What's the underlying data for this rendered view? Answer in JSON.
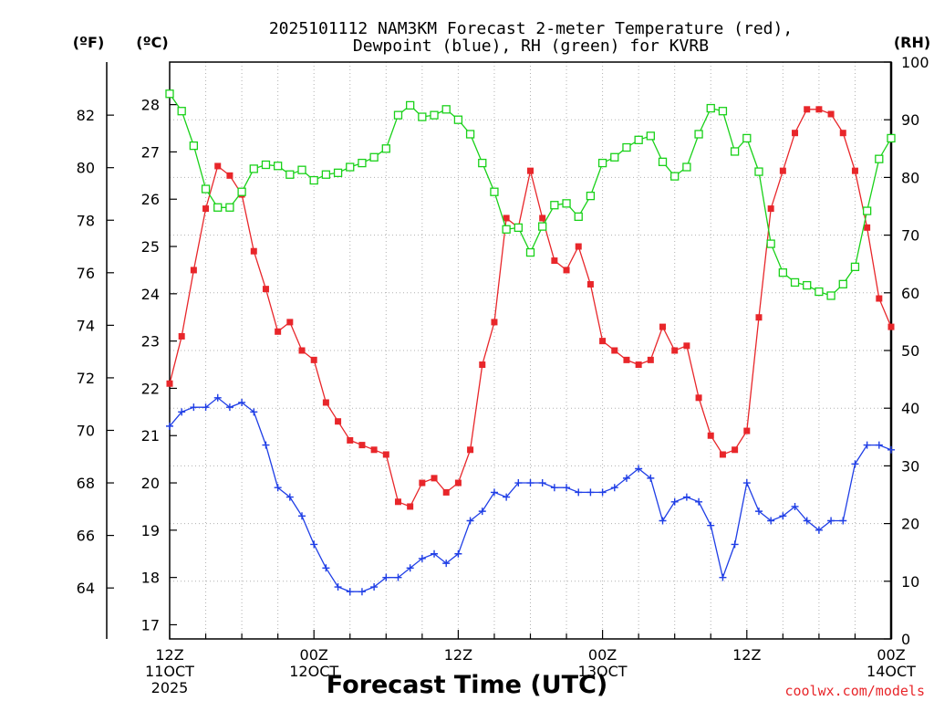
{
  "title_line1": "2025101112 NAM3KM Forecast 2-meter Temperature (red),",
  "title_line2": "Dewpoint (blue), RH (green) for KVRB",
  "left_outer_unit": "(ºF)",
  "left_inner_unit": "(ºC)",
  "right_unit": "(RH)",
  "xlabel": "Forecast Time (UTC)",
  "credit": "coolwx.com/models",
  "colors": {
    "temperature": "#e8262a",
    "dewpoint": "#1f3ee6",
    "rh": "#19d119",
    "grid": "#b0b0b0"
  },
  "chart_data": {
    "type": "line",
    "x": [
      0,
      1,
      2,
      3,
      4,
      5,
      6,
      7,
      8,
      9,
      10,
      11,
      12,
      13,
      14,
      15,
      16,
      17,
      18,
      19,
      20,
      21,
      22,
      23,
      24,
      25,
      26,
      27,
      28,
      29,
      30,
      31,
      32,
      33,
      34,
      35,
      36,
      37,
      38,
      39,
      40,
      41,
      42,
      43,
      44,
      45,
      46,
      47,
      48,
      49,
      50,
      51,
      52,
      53,
      54,
      55,
      56,
      57,
      58,
      59,
      60
    ],
    "xlim": [
      0,
      60
    ],
    "x_ticks": [
      {
        "x": 0,
        "line1": "12Z",
        "line2": "11OCT",
        "line3": "2025"
      },
      {
        "x": 12,
        "line1": "00Z",
        "line2": "12OCT",
        "line3": ""
      },
      {
        "x": 24,
        "line1": "12Z",
        "line2": "",
        "line3": ""
      },
      {
        "x": 36,
        "line1": "00Z",
        "line2": "13OCT",
        "line3": ""
      },
      {
        "x": 48,
        "line1": "12Z",
        "line2": "",
        "line3": ""
      },
      {
        "x": 60,
        "line1": "00Z",
        "line2": "14OCT",
        "line3": ""
      }
    ],
    "celsius_axis": {
      "ylim": [
        16.7,
        28.9
      ],
      "ticks": [
        17,
        18,
        19,
        20,
        21,
        22,
        23,
        24,
        25,
        26,
        27,
        28
      ]
    },
    "fahrenheit_ticks": [
      64,
      66,
      68,
      70,
      72,
      74,
      76,
      78,
      80,
      82
    ],
    "rh_axis": {
      "ylim": [
        0,
        100
      ],
      "ticks": [
        0,
        10,
        20,
        30,
        40,
        50,
        60,
        70,
        80,
        90,
        100
      ]
    },
    "series": [
      {
        "name": "Temperature",
        "unit": "°C",
        "marker": "filled-square",
        "values": [
          22.1,
          23.1,
          24.5,
          25.8,
          26.7,
          26.5,
          26.1,
          24.9,
          24.1,
          23.2,
          23.4,
          22.8,
          22.6,
          21.7,
          21.3,
          20.9,
          20.8,
          20.7,
          20.6,
          19.6,
          19.5,
          20.0,
          20.1,
          19.8,
          20.0,
          20.7,
          22.5,
          23.4,
          25.6,
          25.4,
          26.6,
          25.6,
          24.7,
          24.5,
          25.0,
          24.2,
          23.0,
          22.8,
          22.6,
          22.5,
          22.6,
          23.3,
          22.8,
          22.9,
          21.8,
          21.0,
          20.6,
          20.7,
          21.1,
          23.5,
          25.8,
          26.6,
          27.4,
          27.9,
          27.9,
          27.8,
          27.4,
          26.6,
          25.4,
          23.9,
          23.3
        ]
      },
      {
        "name": "Dewpoint",
        "unit": "°C",
        "marker": "plus",
        "values": [
          21.2,
          21.5,
          21.6,
          21.6,
          21.8,
          21.6,
          21.7,
          21.5,
          20.8,
          19.9,
          19.7,
          19.3,
          18.7,
          18.2,
          17.8,
          17.7,
          17.7,
          17.8,
          18.0,
          18.0,
          18.2,
          18.4,
          18.5,
          18.3,
          18.5,
          19.2,
          19.4,
          19.8,
          19.7,
          20.0,
          20.0,
          20.0,
          19.9,
          19.9,
          19.8,
          19.8,
          19.8,
          19.9,
          20.1,
          20.3,
          20.1,
          19.2,
          19.6,
          19.7,
          19.6,
          19.1,
          18.0,
          18.7,
          20.0,
          19.4,
          19.2,
          19.3,
          19.5,
          19.2,
          19.0,
          19.2,
          19.2,
          20.4,
          20.8,
          20.8,
          20.7
        ]
      },
      {
        "name": "RH",
        "unit": "%",
        "marker": "open-square",
        "values": [
          94.5,
          91.5,
          85.5,
          78,
          74.8,
          74.8,
          77.5,
          81.5,
          82.2,
          82,
          80.5,
          81.3,
          79.5,
          80.5,
          80.8,
          81.8,
          82.5,
          83.5,
          85,
          90.8,
          92.5,
          90.5,
          90.8,
          91.8,
          90,
          87.5,
          82.5,
          77.5,
          71,
          71.3,
          67,
          71.5,
          75.2,
          75.5,
          73.2,
          76.8,
          82.5,
          83.5,
          85.2,
          86.5,
          87.2,
          82.7,
          80.2,
          81.8,
          87.5,
          92,
          91.5,
          84.5,
          86.8,
          81,
          68.5,
          63.5,
          61.8,
          61.3,
          60.2,
          59.5,
          61.5,
          64.5,
          74.2,
          83.2,
          86.8
        ]
      }
    ]
  }
}
